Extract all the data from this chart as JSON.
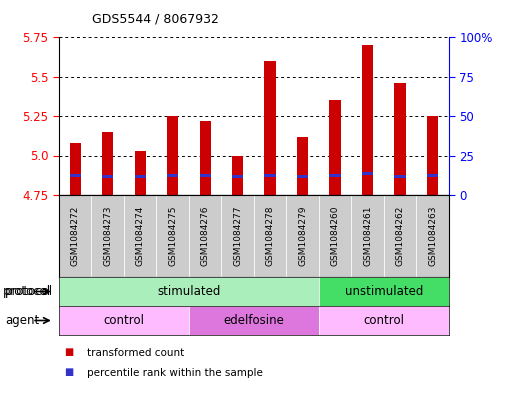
{
  "title": "GDS5544 / 8067932",
  "samples": [
    "GSM1084272",
    "GSM1084273",
    "GSM1084274",
    "GSM1084275",
    "GSM1084276",
    "GSM1084277",
    "GSM1084278",
    "GSM1084279",
    "GSM1084260",
    "GSM1084261",
    "GSM1084262",
    "GSM1084263"
  ],
  "transformed_counts": [
    5.08,
    5.15,
    5.03,
    5.25,
    5.22,
    5.0,
    5.6,
    5.12,
    5.35,
    5.7,
    5.46,
    5.25
  ],
  "percentile_y": [
    4.862,
    4.858,
    4.858,
    4.862,
    4.862,
    4.858,
    4.862,
    4.858,
    4.862,
    4.875,
    4.858,
    4.862
  ],
  "y_min": 4.75,
  "y_max": 5.75,
  "y_ticks": [
    4.75,
    5.0,
    5.25,
    5.5,
    5.75
  ],
  "y_right_ticks": [
    0,
    25,
    50,
    75,
    100
  ],
  "bar_color": "#cc0000",
  "percentile_color": "#3333cc",
  "plot_bg": "#ffffff",
  "protocol_groups": [
    {
      "label": "stimulated",
      "start": 0,
      "end": 7,
      "color": "#aaeebb"
    },
    {
      "label": "unstimulated",
      "start": 8,
      "end": 11,
      "color": "#44dd66"
    }
  ],
  "agent_groups": [
    {
      "label": "control",
      "start": 0,
      "end": 3,
      "color": "#ffbbff"
    },
    {
      "label": "edelfosine",
      "start": 4,
      "end": 7,
      "color": "#dd77dd"
    },
    {
      "label": "control",
      "start": 8,
      "end": 11,
      "color": "#ffbbff"
    }
  ],
  "legend_items": [
    {
      "label": "transformed count",
      "color": "#cc0000"
    },
    {
      "label": "percentile rank within the sample",
      "color": "#3333cc"
    }
  ],
  "xlabel_protocol": "protocol",
  "xlabel_agent": "agent",
  "bar_width": 0.35
}
